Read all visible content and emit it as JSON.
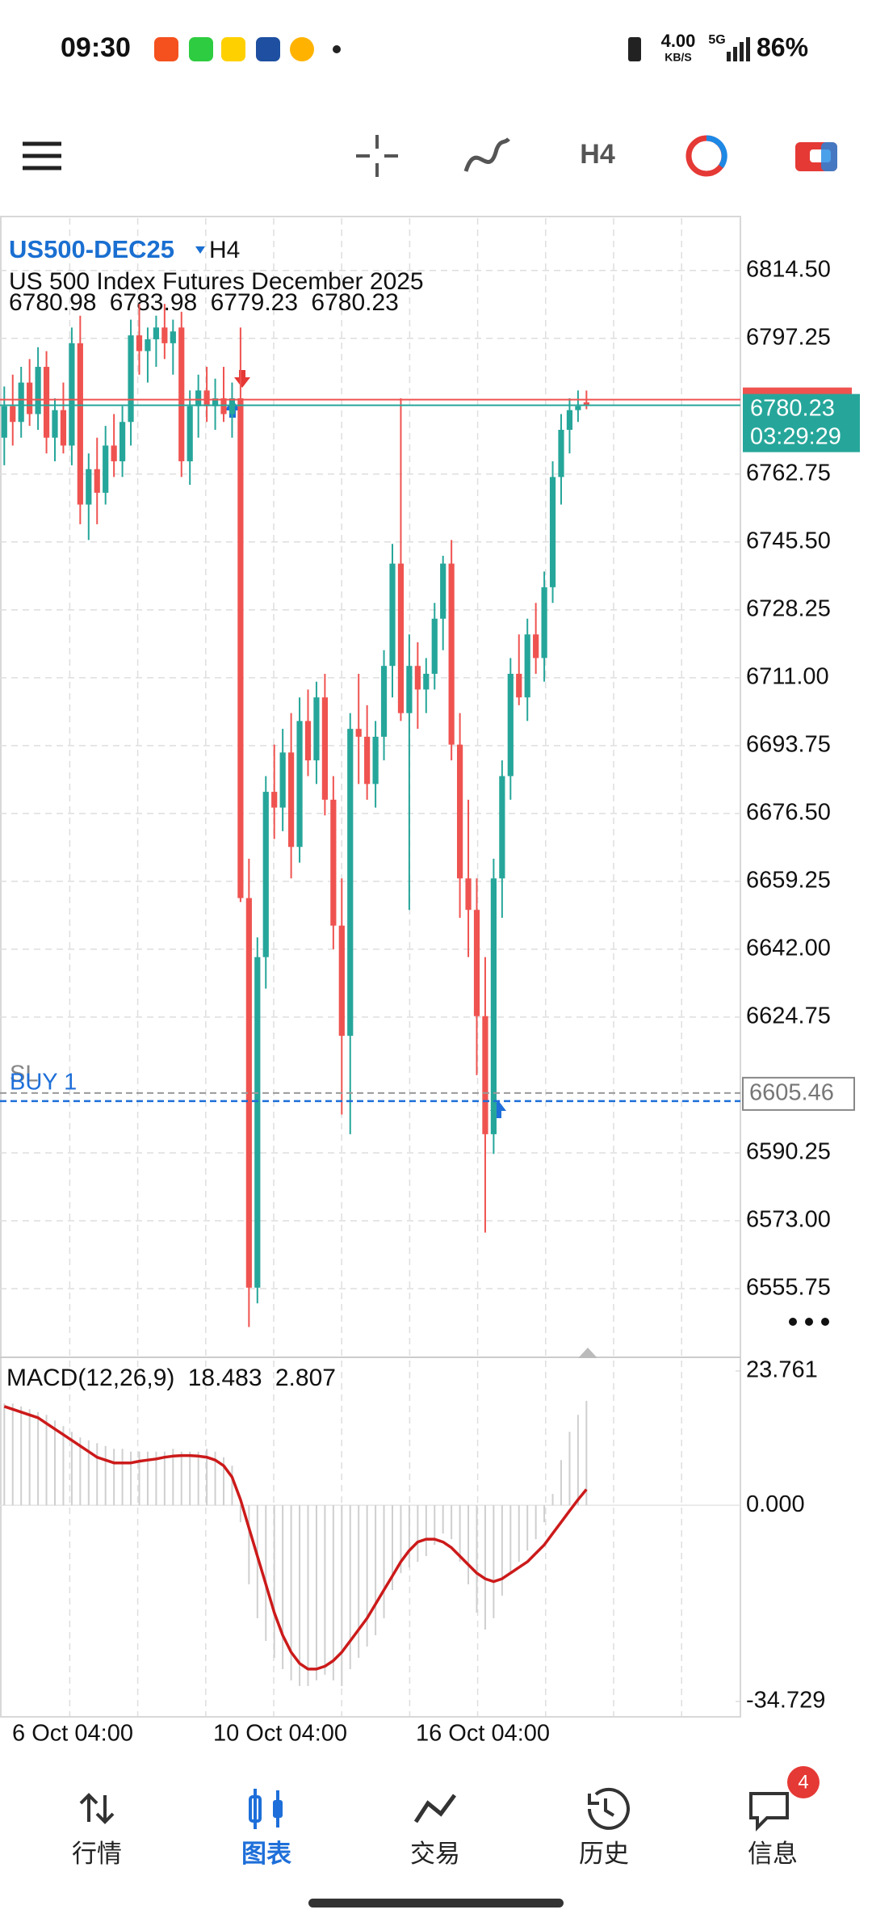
{
  "status_bar": {
    "time": "09:30",
    "net_speed": "4.00",
    "net_unit": "KB/S",
    "network": "5G",
    "battery": "86%"
  },
  "toolbar": {
    "timeframe": "H4"
  },
  "chart": {
    "symbol": "US500-DEC25",
    "timeframe": "H4",
    "description": "US 500 Index Futures December 2025",
    "ylim": [
      6538.3,
      6828.2
    ],
    "yticks": [
      {
        "value": 6814.5,
        "label": "6814.50"
      },
      {
        "value": 6797.25,
        "label": "6797.25"
      },
      {
        "value": 6762.75,
        "label": "6762.75"
      },
      {
        "value": 6745.5,
        "label": "6745.50"
      },
      {
        "value": 6728.25,
        "label": "6728.25"
      },
      {
        "value": 6711,
        "label": "6711.00"
      },
      {
        "value": 6693.75,
        "label": "6693.75"
      },
      {
        "value": 6676.5,
        "label": "6676.50"
      },
      {
        "value": 6659.25,
        "label": "6659.25"
      },
      {
        "value": 6642,
        "label": "6642.00"
      },
      {
        "value": 6624.75,
        "label": "6624.75"
      },
      {
        "value": 6590.25,
        "label": "6590.25"
      },
      {
        "value": 6573,
        "label": "6573.00"
      },
      {
        "value": 6555.75,
        "label": "6555.75"
      }
    ],
    "xticks": [
      "6 Oct 04:00",
      "10 Oct 04:00",
      "16 Oct 04:00"
    ],
    "countdown": "03:29:29",
    "order": {
      "label": "BUY 1",
      "sl_label": "SL",
      "price": 6605.46
    },
    "candles": [
      {
        "o": 6772,
        "h": 6785,
        "l": 6765,
        "c": 6780
      },
      {
        "o": 6780,
        "h": 6788,
        "l": 6770,
        "c": 6776
      },
      {
        "o": 6776,
        "h": 6790,
        "l": 6772,
        "c": 6786
      },
      {
        "o": 6786,
        "h": 6792,
        "l": 6775,
        "c": 6778
      },
      {
        "o": 6778,
        "h": 6795,
        "l": 6774,
        "c": 6790
      },
      {
        "o": 6790,
        "h": 6794,
        "l": 6768,
        "c": 6772
      },
      {
        "o": 6772,
        "h": 6782,
        "l": 6766,
        "c": 6779
      },
      {
        "o": 6779,
        "h": 6786,
        "l": 6768,
        "c": 6770
      },
      {
        "o": 6770,
        "h": 6800,
        "l": 6765,
        "c": 6796
      },
      {
        "o": 6796,
        "h": 6803,
        "l": 6750,
        "c": 6755
      },
      {
        "o": 6755,
        "h": 6768,
        "l": 6746,
        "c": 6764
      },
      {
        "o": 6764,
        "h": 6772,
        "l": 6750,
        "c": 6758
      },
      {
        "o": 6758,
        "h": 6775,
        "l": 6755,
        "c": 6770
      },
      {
        "o": 6770,
        "h": 6778,
        "l": 6762,
        "c": 6766
      },
      {
        "o": 6766,
        "h": 6780,
        "l": 6762,
        "c": 6776
      },
      {
        "o": 6776,
        "h": 6802,
        "l": 6770,
        "c": 6798
      },
      {
        "o": 6798,
        "h": 6806,
        "l": 6788,
        "c": 6794
      },
      {
        "o": 6794,
        "h": 6800,
        "l": 6786,
        "c": 6797
      },
      {
        "o": 6797,
        "h": 6803,
        "l": 6790,
        "c": 6800
      },
      {
        "o": 6800,
        "h": 6806,
        "l": 6792,
        "c": 6796
      },
      {
        "o": 6796,
        "h": 6802,
        "l": 6788,
        "c": 6799
      },
      {
        "o": 6800,
        "h": 6804,
        "l": 6762,
        "c": 6766
      },
      {
        "o": 6766,
        "h": 6784,
        "l": 6760,
        "c": 6780
      },
      {
        "o": 6780,
        "h": 6788,
        "l": 6772,
        "c": 6784
      },
      {
        "o": 6784,
        "h": 6790,
        "l": 6776,
        "c": 6780
      },
      {
        "o": 6780,
        "h": 6787,
        "l": 6774,
        "c": 6782
      },
      {
        "o": 6782,
        "h": 6790,
        "l": 6776,
        "c": 6778
      },
      {
        "o": 6778,
        "h": 6786,
        "l": 6772,
        "c": 6782
      },
      {
        "o": 6782,
        "h": 6800,
        "l": 6654,
        "c": 6655
      },
      {
        "o": 6655,
        "h": 6665,
        "l": 6546,
        "c": 6556
      },
      {
        "o": 6556,
        "h": 6645,
        "l": 6552,
        "c": 6640
      },
      {
        "o": 6640,
        "h": 6686,
        "l": 6632,
        "c": 6682
      },
      {
        "o": 6682,
        "h": 6694,
        "l": 6670,
        "c": 6678
      },
      {
        "o": 6678,
        "h": 6698,
        "l": 6672,
        "c": 6692
      },
      {
        "o": 6692,
        "h": 6702,
        "l": 6660,
        "c": 6668
      },
      {
        "o": 6668,
        "h": 6706,
        "l": 6664,
        "c": 6700
      },
      {
        "o": 6700,
        "h": 6708,
        "l": 6686,
        "c": 6690
      },
      {
        "o": 6690,
        "h": 6710,
        "l": 6684,
        "c": 6706
      },
      {
        "o": 6706,
        "h": 6712,
        "l": 6676,
        "c": 6680
      },
      {
        "o": 6680,
        "h": 6686,
        "l": 6642,
        "c": 6648
      },
      {
        "o": 6648,
        "h": 6660,
        "l": 6600,
        "c": 6620
      },
      {
        "o": 6620,
        "h": 6702,
        "l": 6595,
        "c": 6698
      },
      {
        "o": 6698,
        "h": 6712,
        "l": 6684,
        "c": 6696
      },
      {
        "o": 6696,
        "h": 6704,
        "l": 6680,
        "c": 6684
      },
      {
        "o": 6684,
        "h": 6700,
        "l": 6678,
        "c": 6696
      },
      {
        "o": 6696,
        "h": 6718,
        "l": 6690,
        "c": 6714
      },
      {
        "o": 6714,
        "h": 6745,
        "l": 6706,
        "c": 6740
      },
      {
        "o": 6740,
        "h": 6782,
        "l": 6700,
        "c": 6702
      },
      {
        "o": 6702,
        "h": 6722,
        "l": 6652,
        "c": 6714
      },
      {
        "o": 6714,
        "h": 6720,
        "l": 6698,
        "c": 6708
      },
      {
        "o": 6708,
        "h": 6716,
        "l": 6702,
        "c": 6712
      },
      {
        "o": 6712,
        "h": 6730,
        "l": 6708,
        "c": 6726
      },
      {
        "o": 6726,
        "h": 6742,
        "l": 6718,
        "c": 6740
      },
      {
        "o": 6740,
        "h": 6746,
        "l": 6690,
        "c": 6694
      },
      {
        "o": 6694,
        "h": 6702,
        "l": 6650,
        "c": 6660
      },
      {
        "o": 6660,
        "h": 6680,
        "l": 6640,
        "c": 6652
      },
      {
        "o": 6652,
        "h": 6660,
        "l": 6610,
        "c": 6625
      },
      {
        "o": 6625,
        "h": 6640,
        "l": 6570,
        "c": 6595
      },
      {
        "o": 6595,
        "h": 6665,
        "l": 6590,
        "c": 6660
      },
      {
        "o": 6660,
        "h": 6690,
        "l": 6650,
        "c": 6686
      },
      {
        "o": 6686,
        "h": 6716,
        "l": 6680,
        "c": 6712
      },
      {
        "o": 6712,
        "h": 6722,
        "l": 6704,
        "c": 6706
      },
      {
        "o": 6706,
        "h": 6726,
        "l": 6700,
        "c": 6722
      },
      {
        "o": 6722,
        "h": 6730,
        "l": 6712,
        "c": 6716
      },
      {
        "o": 6716,
        "h": 6738,
        "l": 6710,
        "c": 6734
      },
      {
        "o": 6734,
        "h": 6766,
        "l": 6730,
        "c": 6762
      },
      {
        "o": 6762,
        "h": 6778,
        "l": 6755,
        "c": 6774
      },
      {
        "o": 6774,
        "h": 6782,
        "l": 6768,
        "c": 6779
      },
      {
        "o": 6779,
        "h": 6784,
        "l": 6776,
        "c": 6780
      },
      {
        "o": 6780.98,
        "h": 6783.98,
        "l": 6779.23,
        "c": 6780.23
      }
    ]
  },
  "macd": {
    "label": "MACD(12,26,9)",
    "ylim": [
      -34.729,
      23.761
    ],
    "yticks": [
      23.761,
      {
        "value": 0,
        "label": "0.000"
      },
      -34.729
    ],
    "histogram": [
      18,
      18,
      17.5,
      17,
      16.5,
      16,
      15,
      14,
      13,
      12,
      11.5,
      11,
      10.5,
      10,
      10,
      9.5,
      9.5,
      9.5,
      9.5,
      9.5,
      10,
      9.5,
      9.5,
      9.5,
      10,
      9.5,
      8.5,
      7,
      -3,
      -14,
      -20,
      -24,
      -27,
      -29,
      -31,
      -32,
      -32,
      -31,
      -30,
      -31,
      -32,
      -29,
      -27,
      -25,
      -23,
      -20,
      -15,
      -12,
      -11,
      -10,
      -9,
      -7,
      -5,
      -6,
      -10,
      -14,
      -19,
      -22,
      -20,
      -16,
      -12,
      -10,
      -8,
      -6,
      -3,
      2,
      8,
      13,
      16,
      18.483
    ],
    "signal": [
      17.5,
      17,
      16.5,
      16,
      15.5,
      14.5,
      13.5,
      12.5,
      11.5,
      10.5,
      9.5,
      8.5,
      8,
      7.5,
      7.5,
      7.5,
      7.8,
      8,
      8.2,
      8.5,
      8.7,
      8.8,
      8.8,
      8.7,
      8.5,
      8,
      7,
      5,
      1,
      -4,
      -9,
      -14,
      -19,
      -23,
      -26,
      -28,
      -29,
      -29,
      -28.5,
      -27.5,
      -26,
      -24,
      -22,
      -20,
      -17.5,
      -15,
      -12.5,
      -10,
      -8,
      -6.5,
      -6,
      -6,
      -6.5,
      -7.5,
      -9,
      -10.5,
      -12,
      -13,
      -13.5,
      -13,
      -12,
      -11,
      -10,
      -8.5,
      -7,
      -5,
      -3,
      -1,
      1,
      2.807
    ]
  },
  "nav": {
    "tabs": [
      {
        "label": "行情"
      },
      {
        "label": "图表"
      },
      {
        "label": "交易"
      },
      {
        "label": "历史"
      },
      {
        "label": "信息"
      }
    ],
    "badge": 4
  }
}
